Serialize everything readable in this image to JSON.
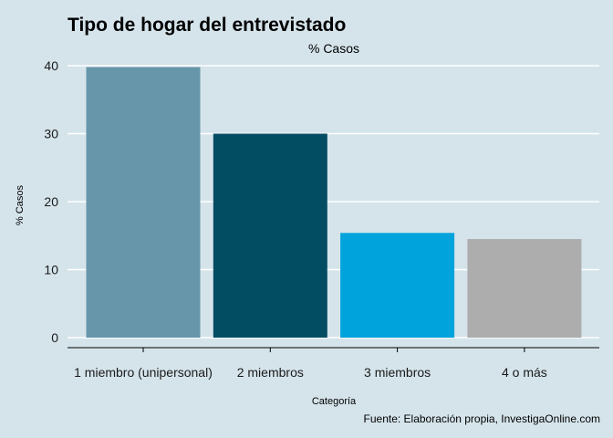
{
  "chart_data": {
    "type": "bar",
    "title": "Tipo de hogar del entrevistado",
    "subtitle": "% Casos",
    "xlabel": "Categoría",
    "ylabel": "% Casos",
    "caption": "Fuente: Elaboración propia, InvestigaOnline.com",
    "categories": [
      "1 miembro (unipersonal)",
      "2 miembros",
      "3 miembros",
      "4 o más"
    ],
    "values": [
      39.8,
      30.0,
      15.4,
      14.5
    ],
    "colors": [
      "#6796aa",
      "#034d63",
      "#00a3db",
      "#adadad"
    ],
    "ylim": [
      0,
      40
    ],
    "yticks": [
      0,
      10,
      20,
      30,
      40
    ],
    "grid": true,
    "gridline_color": "#ffffff",
    "background": "#d5e4eb"
  }
}
